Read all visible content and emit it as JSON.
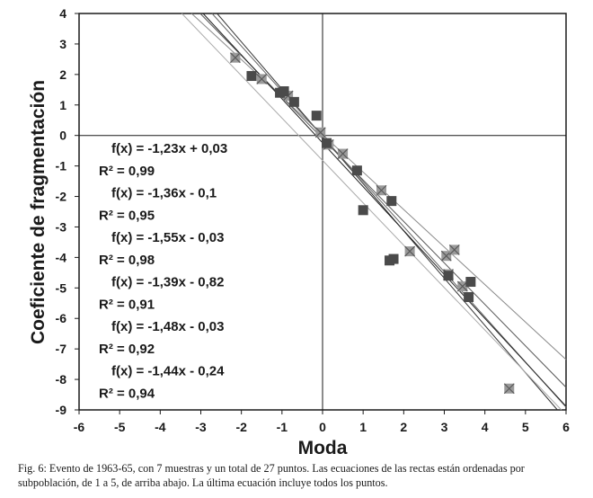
{
  "chart_data": {
    "type": "scatter",
    "xlabel": "Moda",
    "ylabel": "Coeficiente de fragmentación",
    "xlim": [
      -6,
      6
    ],
    "ylim": [
      -9,
      4
    ],
    "xticks": [
      "-6",
      "-5",
      "-4",
      "-3",
      "-2",
      "-1",
      "0",
      "1",
      "2",
      "3",
      "4",
      "5",
      "6"
    ],
    "yticks": [
      "4",
      "3",
      "2",
      "1",
      "0",
      "-1",
      "-2",
      "-3",
      "-4",
      "-5",
      "-6",
      "-7",
      "-8",
      "-9"
    ],
    "grid": false,
    "points_dark": [
      {
        "x": -1.75,
        "y": 1.95
      },
      {
        "x": -1.05,
        "y": 1.4
      },
      {
        "x": -0.95,
        "y": 1.45
      },
      {
        "x": -0.7,
        "y": 1.1
      },
      {
        "x": -0.15,
        "y": 0.65
      },
      {
        "x": 0.1,
        "y": -0.25
      },
      {
        "x": 0.85,
        "y": -1.15
      },
      {
        "x": 1.0,
        "y": -2.45
      },
      {
        "x": 1.7,
        "y": -2.15
      },
      {
        "x": 1.65,
        "y": -4.1
      },
      {
        "x": 1.75,
        "y": -4.05
      },
      {
        "x": 3.1,
        "y": -4.6
      },
      {
        "x": 3.65,
        "y": -4.8
      },
      {
        "x": 3.6,
        "y": -5.3
      }
    ],
    "points_light": [
      {
        "x": -2.15,
        "y": 2.55
      },
      {
        "x": -1.5,
        "y": 1.85
      },
      {
        "x": -0.85,
        "y": 1.3
      },
      {
        "x": -0.05,
        "y": 0.1
      },
      {
        "x": 0.5,
        "y": -0.6
      },
      {
        "x": 1.45,
        "y": -1.8
      },
      {
        "x": 2.15,
        "y": -3.8
      },
      {
        "x": 3.05,
        "y": -3.95
      },
      {
        "x": 3.25,
        "y": -3.75
      },
      {
        "x": 3.45,
        "y": -4.95
      },
      {
        "x": 3.1,
        "y": -4.55
      },
      {
        "x": 4.6,
        "y": -8.3
      },
      {
        "x": 0.15,
        "y": -0.3
      }
    ],
    "series": [
      {
        "slope": -1.23,
        "intercept": 0.03,
        "equation": "f(x) = -1,23x + 0,03",
        "r2": "R² = 0,99"
      },
      {
        "slope": -1.36,
        "intercept": -0.1,
        "equation": "f(x) = -1,36x - 0,1",
        "r2": "R² = 0,95"
      },
      {
        "slope": -1.55,
        "intercept": -0.03,
        "equation": "f(x) = -1,55x - 0,03",
        "r2": "R² = 0,98"
      },
      {
        "slope": -1.39,
        "intercept": -0.82,
        "equation": "f(x) = -1,39x - 0,82",
        "r2": "R² = 0,91"
      },
      {
        "slope": -1.48,
        "intercept": -0.03,
        "equation": "f(x) = -1,48x - 0,03",
        "r2": "R² = 0,92"
      },
      {
        "slope": -1.44,
        "intercept": -0.24,
        "equation": "f(x) = -1,44x - 0,24",
        "r2": "R² = 0,94"
      }
    ],
    "colors": {
      "dark_marker": "#4a4a4a",
      "light_marker": "#9a9a9a",
      "lines": [
        "#888888",
        "#555555",
        "#333333",
        "#aaaaaa",
        "#666666",
        "#222222"
      ]
    }
  },
  "caption": "Fig. 6: Evento de 1963-65, con 7 muestras y un total de 27 puntos. Las ecuaciones de las rectas están ordenadas por subpoblación, de 1 a 5, de arriba abajo. La última ecuación incluye todos los puntos."
}
